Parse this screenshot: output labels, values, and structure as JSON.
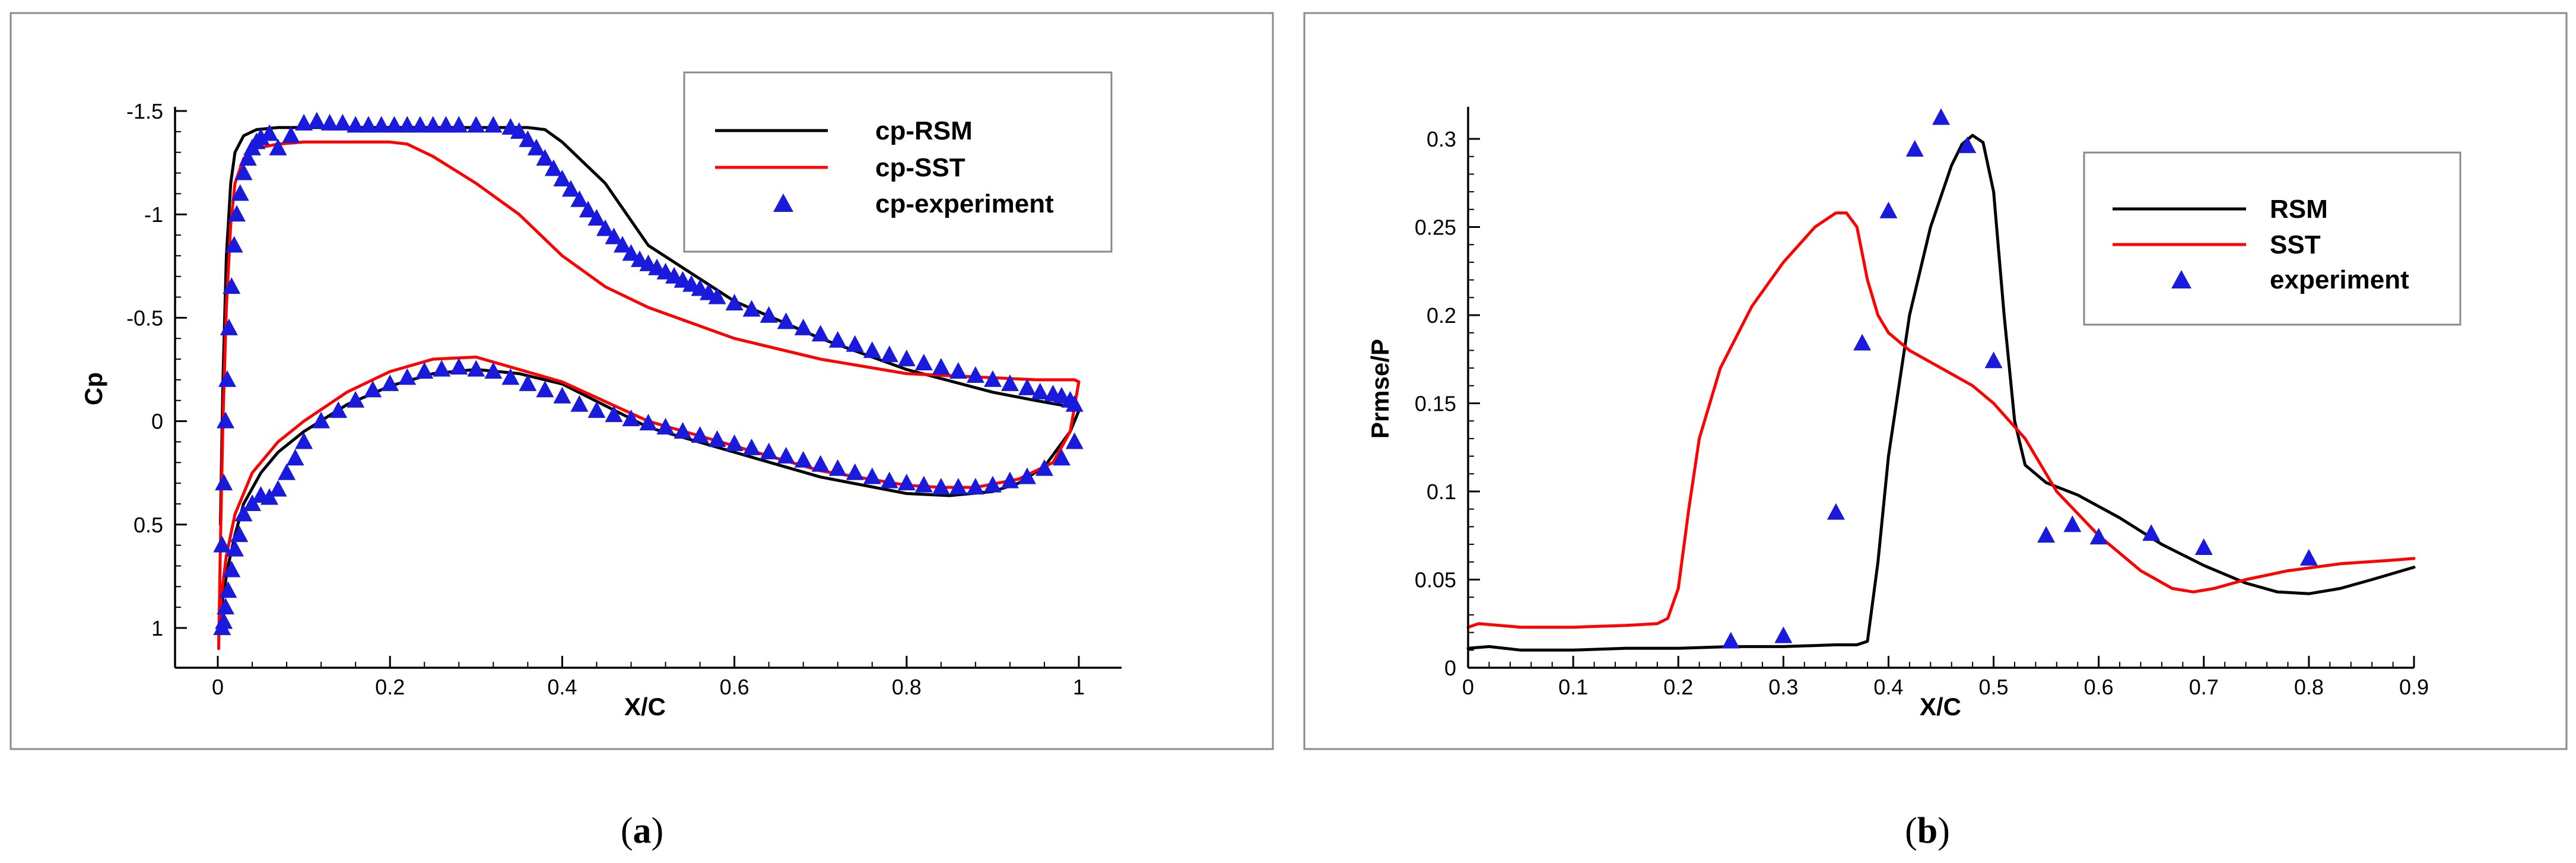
{
  "chart_data": [
    {
      "type": "line",
      "panel": "a",
      "caption_label": "a",
      "xlabel": "X/C",
      "ylabel": "Cp",
      "xlim": [
        -0.05,
        1.05
      ],
      "ylim": [
        1.2,
        -1.6
      ],
      "y_inverted": true,
      "xticks": [
        0,
        0.2,
        0.4,
        0.6,
        0.8,
        1
      ],
      "xtick_labels": [
        "0",
        "0.2",
        "0.4",
        "0.6",
        "0.8",
        "1"
      ],
      "yticks": [
        -1.5,
        -1,
        -0.5,
        0,
        0.5,
        1
      ],
      "ytick_labels": [
        "-1.5",
        "-1",
        "-0.5",
        "0",
        "0.5",
        "1"
      ],
      "legend": {
        "position": "top-right",
        "entries": [
          "cp-RSM",
          "cp-SST",
          "cp-experiment"
        ]
      },
      "series": [
        {
          "name": "cp-RSM",
          "style": "line",
          "color": "#000000",
          "x": [
            0.003,
            0.006,
            0.01,
            0.015,
            0.02,
            0.03,
            0.045,
            0.07,
            0.1,
            0.2,
            0.3,
            0.36,
            0.38,
            0.4,
            0.45,
            0.5,
            0.6,
            0.7,
            0.8,
            0.9,
            0.95,
            0.99,
            1.0,
            0.99,
            0.96,
            0.93,
            0.9,
            0.85,
            0.8,
            0.7,
            0.6,
            0.5,
            0.4,
            0.35,
            0.3,
            0.25,
            0.2,
            0.15,
            0.1,
            0.07,
            0.05,
            0.03,
            0.02,
            0.012,
            0.006,
            0.003
          ],
          "y": [
            0.5,
            -0.2,
            -0.8,
            -1.15,
            -1.3,
            -1.38,
            -1.41,
            -1.42,
            -1.42,
            -1.42,
            -1.42,
            -1.42,
            -1.41,
            -1.35,
            -1.15,
            -0.85,
            -0.58,
            -0.4,
            -0.25,
            -0.14,
            -0.1,
            -0.07,
            -0.05,
            0.05,
            0.22,
            0.3,
            0.34,
            0.36,
            0.35,
            0.27,
            0.15,
            0.03,
            -0.18,
            -0.23,
            -0.25,
            -0.23,
            -0.17,
            -0.08,
            0.05,
            0.15,
            0.25,
            0.4,
            0.55,
            0.7,
            0.85,
            0.95
          ]
        },
        {
          "name": "cp-SST",
          "style": "line",
          "color": "#ff0000",
          "x": [
            0.001,
            0.003,
            0.006,
            0.01,
            0.015,
            0.02,
            0.03,
            0.045,
            0.07,
            0.1,
            0.15,
            0.2,
            0.22,
            0.25,
            0.3,
            0.35,
            0.4,
            0.45,
            0.5,
            0.6,
            0.7,
            0.8,
            0.9,
            0.95,
            0.995,
            1.0,
            0.99,
            0.97,
            0.93,
            0.88,
            0.84,
            0.8,
            0.7,
            0.6,
            0.5,
            0.4,
            0.3,
            0.25,
            0.2,
            0.15,
            0.1,
            0.07,
            0.04,
            0.02,
            0.01,
            0.004,
            0.001
          ],
          "y": [
            1.1,
            0.6,
            0.0,
            -0.55,
            -0.95,
            -1.15,
            -1.27,
            -1.32,
            -1.34,
            -1.35,
            -1.35,
            -1.35,
            -1.34,
            -1.28,
            -1.15,
            -1.0,
            -0.8,
            -0.65,
            -0.55,
            -0.4,
            -0.3,
            -0.23,
            -0.21,
            -0.2,
            -0.2,
            -0.19,
            0.05,
            0.2,
            0.28,
            0.32,
            0.32,
            0.31,
            0.24,
            0.12,
            0.0,
            -0.19,
            -0.31,
            -0.3,
            -0.24,
            -0.14,
            0.0,
            0.1,
            0.25,
            0.45,
            0.65,
            0.85,
            1.05
          ]
        },
        {
          "name": "cp-experiment",
          "style": "triangle",
          "color": "#1a1adc",
          "x": [
            0.005,
            0.007,
            0.009,
            0.011,
            0.013,
            0.016,
            0.019,
            0.022,
            0.026,
            0.03,
            0.035,
            0.04,
            0.045,
            0.05,
            0.06,
            0.07,
            0.085,
            0.1,
            0.115,
            0.13,
            0.145,
            0.16,
            0.175,
            0.19,
            0.205,
            0.22,
            0.235,
            0.25,
            0.265,
            0.28,
            0.3,
            0.32,
            0.34,
            0.35,
            0.36,
            0.37,
            0.38,
            0.39,
            0.4,
            0.41,
            0.42,
            0.43,
            0.44,
            0.45,
            0.46,
            0.47,
            0.48,
            0.49,
            0.5,
            0.51,
            0.52,
            0.53,
            0.54,
            0.55,
            0.56,
            0.57,
            0.58,
            0.6,
            0.62,
            0.64,
            0.66,
            0.68,
            0.7,
            0.72,
            0.74,
            0.76,
            0.78,
            0.8,
            0.82,
            0.84,
            0.86,
            0.88,
            0.9,
            0.92,
            0.94,
            0.955,
            0.97,
            0.98,
            0.99,
            0.995,
            0.995,
            0.98,
            0.96,
            0.94,
            0.92,
            0.9,
            0.88,
            0.86,
            0.84,
            0.82,
            0.8,
            0.78,
            0.76,
            0.74,
            0.72,
            0.7,
            0.68,
            0.66,
            0.64,
            0.62,
            0.6,
            0.58,
            0.56,
            0.54,
            0.52,
            0.5,
            0.48,
            0.46,
            0.44,
            0.42,
            0.4,
            0.38,
            0.36,
            0.34,
            0.32,
            0.3,
            0.28,
            0.26,
            0.24,
            0.22,
            0.2,
            0.18,
            0.16,
            0.14,
            0.12,
            0.1,
            0.09,
            0.08,
            0.07,
            0.06,
            0.05,
            0.04,
            0.03,
            0.025,
            0.02,
            0.016,
            0.012,
            0.009,
            0.007,
            0.005
          ],
          "y": [
            0.6,
            0.3,
            0.0,
            -0.2,
            -0.45,
            -0.65,
            -0.85,
            -1.0,
            -1.1,
            -1.2,
            -1.27,
            -1.32,
            -1.35,
            -1.37,
            -1.39,
            -1.32,
            -1.38,
            -1.44,
            -1.45,
            -1.44,
            -1.44,
            -1.43,
            -1.43,
            -1.43,
            -1.43,
            -1.43,
            -1.43,
            -1.43,
            -1.43,
            -1.43,
            -1.43,
            -1.43,
            -1.42,
            -1.4,
            -1.36,
            -1.32,
            -1.27,
            -1.22,
            -1.17,
            -1.12,
            -1.07,
            -1.02,
            -0.98,
            -0.93,
            -0.89,
            -0.85,
            -0.81,
            -0.78,
            -0.76,
            -0.74,
            -0.72,
            -0.7,
            -0.68,
            -0.66,
            -0.64,
            -0.62,
            -0.6,
            -0.57,
            -0.54,
            -0.51,
            -0.48,
            -0.45,
            -0.42,
            -0.39,
            -0.37,
            -0.34,
            -0.32,
            -0.3,
            -0.28,
            -0.26,
            -0.24,
            -0.22,
            -0.2,
            -0.18,
            -0.16,
            -0.14,
            -0.13,
            -0.12,
            -0.1,
            -0.08,
            0.1,
            0.18,
            0.23,
            0.27,
            0.29,
            0.31,
            0.32,
            0.32,
            0.32,
            0.31,
            0.3,
            0.29,
            0.27,
            0.25,
            0.23,
            0.21,
            0.19,
            0.17,
            0.15,
            0.13,
            0.11,
            0.09,
            0.07,
            0.05,
            0.03,
            0.01,
            -0.01,
            -0.03,
            -0.05,
            -0.08,
            -0.12,
            -0.15,
            -0.18,
            -0.21,
            -0.24,
            -0.25,
            -0.26,
            -0.25,
            -0.24,
            -0.21,
            -0.18,
            -0.15,
            -0.1,
            -0.05,
            0.0,
            0.1,
            0.18,
            0.25,
            0.33,
            0.37,
            0.36,
            0.4,
            0.45,
            0.55,
            0.62,
            0.72,
            0.82,
            0.9,
            0.97,
            1.0
          ]
        }
      ]
    },
    {
      "type": "line",
      "panel": "b",
      "caption_label": "b",
      "xlabel": "X/C",
      "ylabel": "Prmse/P",
      "xlim": [
        0,
        0.9
      ],
      "ylim": [
        0,
        0.32
      ],
      "xticks": [
        0,
        0.1,
        0.2,
        0.3,
        0.4,
        0.5,
        0.6,
        0.7,
        0.8,
        0.9
      ],
      "xtick_labels": [
        "0",
        "0.1",
        "0.2",
        "0.3",
        "0.4",
        "0.5",
        "0.6",
        "0.7",
        "0.8",
        "0.9"
      ],
      "yticks": [
        0,
        0.05,
        0.1,
        0.15,
        0.2,
        0.25,
        0.3
      ],
      "ytick_labels": [
        "0",
        "0.05",
        "0.1",
        "0.15",
        "0.2",
        "0.25",
        "0.3"
      ],
      "legend": {
        "position": "top-right",
        "entries": [
          "RSM",
          "SST",
          "experiment"
        ]
      },
      "series": [
        {
          "name": "RSM",
          "style": "line",
          "color": "#000000",
          "x": [
            0,
            0.02,
            0.05,
            0.1,
            0.15,
            0.2,
            0.25,
            0.3,
            0.35,
            0.37,
            0.38,
            0.39,
            0.4,
            0.42,
            0.44,
            0.46,
            0.47,
            0.48,
            0.49,
            0.5,
            0.51,
            0.52,
            0.53,
            0.55,
            0.58,
            0.62,
            0.66,
            0.7,
            0.74,
            0.77,
            0.8,
            0.83,
            0.86,
            0.9
          ],
          "y": [
            0.011,
            0.012,
            0.01,
            0.01,
            0.011,
            0.011,
            0.012,
            0.012,
            0.013,
            0.013,
            0.015,
            0.06,
            0.12,
            0.2,
            0.25,
            0.285,
            0.297,
            0.302,
            0.298,
            0.27,
            0.2,
            0.14,
            0.115,
            0.105,
            0.098,
            0.085,
            0.07,
            0.058,
            0.048,
            0.043,
            0.042,
            0.045,
            0.05,
            0.057
          ]
        },
        {
          "name": "SST",
          "style": "line",
          "color": "#ff0000",
          "x": [
            0,
            0.01,
            0.05,
            0.1,
            0.15,
            0.18,
            0.19,
            0.2,
            0.21,
            0.22,
            0.24,
            0.27,
            0.3,
            0.33,
            0.35,
            0.36,
            0.37,
            0.38,
            0.39,
            0.4,
            0.42,
            0.45,
            0.48,
            0.5,
            0.53,
            0.56,
            0.6,
            0.64,
            0.67,
            0.69,
            0.71,
            0.74,
            0.78,
            0.83,
            0.88,
            0.9
          ],
          "y": [
            0.023,
            0.025,
            0.023,
            0.023,
            0.024,
            0.025,
            0.028,
            0.045,
            0.09,
            0.13,
            0.17,
            0.205,
            0.23,
            0.25,
            0.258,
            0.258,
            0.25,
            0.22,
            0.2,
            0.19,
            0.18,
            0.17,
            0.16,
            0.15,
            0.13,
            0.1,
            0.075,
            0.055,
            0.045,
            0.043,
            0.045,
            0.05,
            0.055,
            0.059,
            0.061,
            0.062
          ]
        },
        {
          "name": "experiment",
          "style": "triangle",
          "color": "#1a1adc",
          "x": [
            0.25,
            0.3,
            0.35,
            0.375,
            0.4,
            0.425,
            0.45,
            0.475,
            0.5,
            0.55,
            0.575,
            0.6,
            0.65,
            0.7,
            0.8
          ],
          "y": [
            0.015,
            0.018,
            0.088,
            0.184,
            0.259,
            0.294,
            0.312,
            0.296,
            0.174,
            0.075,
            0.081,
            0.074,
            0.076,
            0.068,
            0.062
          ]
        }
      ]
    }
  ]
}
